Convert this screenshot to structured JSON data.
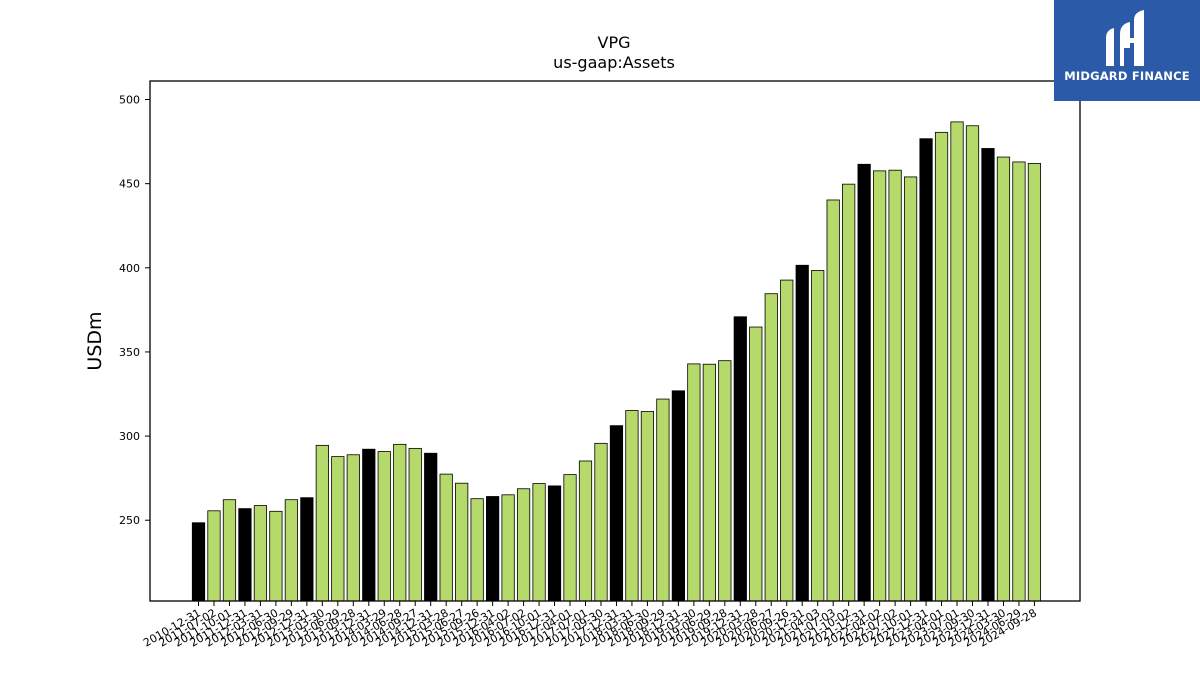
{
  "logo": {
    "text": "MIDGARD FINANCE"
  },
  "colors": {
    "annual": "#000000",
    "quarterly": "#b5d96b",
    "edge": "#000000",
    "logo_bg": "#2b5aa8"
  },
  "chart_data": {
    "type": "bar",
    "title": "VPG",
    "subtitle": "us-gaap:Assets",
    "ylabel": "USDm",
    "xlabel": "",
    "ylim": [
      202,
      511
    ],
    "yticks": [
      250,
      300,
      350,
      400,
      450,
      500
    ],
    "grid": false,
    "categories": [
      "2010-12-31",
      "2011-07-02",
      "2011-10-01",
      "2011-12-31",
      "2012-03-31",
      "2012-06-30",
      "2012-09-29",
      "2012-12-31",
      "2013-03-30",
      "2013-06-29",
      "2013-09-28",
      "2013-12-31",
      "2014-03-29",
      "2014-06-28",
      "2014-09-27",
      "2014-12-31",
      "2015-03-28",
      "2015-06-27",
      "2015-09-26",
      "2015-12-31",
      "2016-04-02",
      "2016-07-02",
      "2016-10-01",
      "2016-12-31",
      "2017-04-01",
      "2017-07-01",
      "2017-09-30",
      "2017-12-31",
      "2018-03-31",
      "2018-06-30",
      "2018-09-29",
      "2018-12-31",
      "2019-03-30",
      "2019-06-29",
      "2019-09-28",
      "2019-12-31",
      "2020-03-28",
      "2020-06-27",
      "2020-09-26",
      "2020-12-31",
      "2021-04-03",
      "2021-07-03",
      "2021-10-02",
      "2021-12-31",
      "2022-04-02",
      "2022-07-02",
      "2022-10-01",
      "2022-12-31",
      "2023-04-01",
      "2023-07-01",
      "2023-09-30",
      "2023-12-31",
      "2024-03-30",
      "2024-06-29",
      "2024-09-28"
    ],
    "values": [
      248.5,
      255.6,
      262.2,
      256.9,
      258.7,
      255.3,
      262.2,
      263.4,
      294.5,
      287.8,
      288.9,
      292.2,
      290.8,
      295.1,
      292.7,
      289.8,
      277.4,
      272.0,
      262.8,
      264.1,
      265.1,
      268.7,
      271.8,
      270.4,
      277.1,
      285.2,
      295.7,
      306.2,
      315.2,
      314.6,
      322.0,
      326.9,
      342.9,
      342.7,
      344.8,
      370.9,
      364.8,
      384.6,
      392.7,
      401.5,
      398.4,
      440.3,
      449.7,
      461.5,
      457.6,
      458.0,
      454.0,
      476.7,
      480.5,
      486.7,
      484.4,
      470.9,
      465.8,
      462.9,
      462.0
    ],
    "annual": [
      true,
      false,
      false,
      true,
      false,
      false,
      false,
      true,
      false,
      false,
      false,
      true,
      false,
      false,
      false,
      true,
      false,
      false,
      false,
      true,
      false,
      false,
      false,
      true,
      false,
      false,
      false,
      true,
      false,
      false,
      false,
      true,
      false,
      false,
      false,
      true,
      false,
      false,
      false,
      true,
      false,
      false,
      false,
      true,
      false,
      false,
      false,
      true,
      false,
      false,
      false,
      true,
      false,
      false,
      false
    ]
  }
}
